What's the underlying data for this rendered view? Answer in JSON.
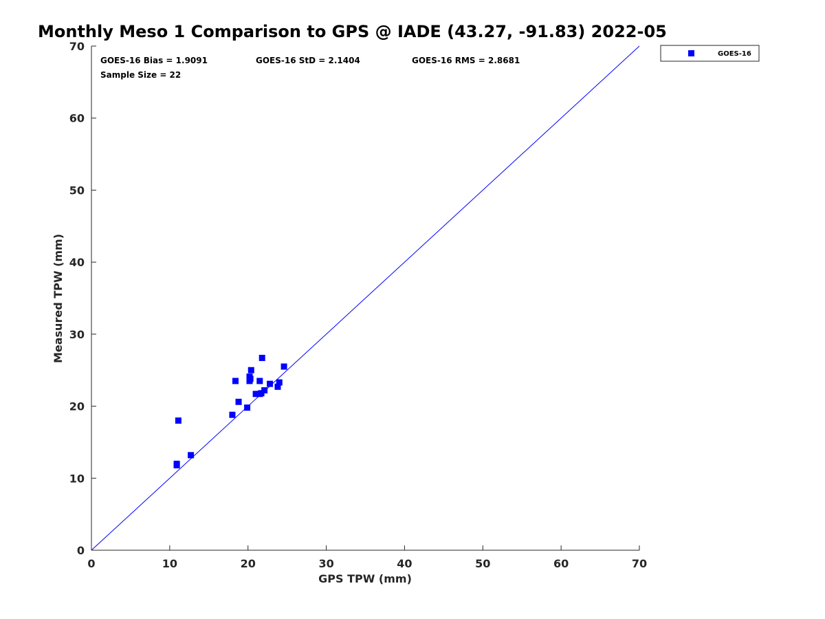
{
  "chart_data": {
    "type": "scatter",
    "title": "Monthly Meso 1 Comparison to GPS @ IADE (43.27, -91.83) 2022-05",
    "xlabel": "GPS TPW (mm)",
    "ylabel": "Measured TPW (mm)",
    "xlim": [
      0,
      70
    ],
    "ylim": [
      0,
      70
    ],
    "xticks": [
      "0",
      "10",
      "20",
      "30",
      "40",
      "50",
      "60",
      "70"
    ],
    "yticks": [
      "0",
      "10",
      "20",
      "30",
      "40",
      "50",
      "60",
      "70"
    ],
    "grid": false,
    "legend_position": "outside-top-right",
    "reference_line": {
      "from": [
        0,
        0
      ],
      "to": [
        70,
        70
      ],
      "color": "#0000ff"
    },
    "stats": {
      "bias": "GOES-16 Bias = 1.9091",
      "std": "GOES-16 StD = 2.1404",
      "rms": "GOES-16 RMS = 2.8681",
      "sample": "Sample Size = 22"
    },
    "series": [
      {
        "name": "GOES-16",
        "color": "#0000ff",
        "marker": "square",
        "points": [
          [
            10.9,
            11.8
          ],
          [
            10.9,
            12.0
          ],
          [
            11.1,
            18.0
          ],
          [
            12.7,
            13.2
          ],
          [
            18.0,
            18.8
          ],
          [
            18.4,
            23.5
          ],
          [
            18.8,
            20.6
          ],
          [
            19.9,
            19.8
          ],
          [
            20.2,
            23.5
          ],
          [
            20.2,
            24.1
          ],
          [
            20.4,
            25.0
          ],
          [
            21.0,
            21.7
          ],
          [
            21.5,
            21.7
          ],
          [
            21.5,
            23.5
          ],
          [
            21.7,
            21.8
          ],
          [
            21.8,
            26.7
          ],
          [
            22.1,
            22.2
          ],
          [
            22.8,
            23.1
          ],
          [
            23.8,
            22.7
          ],
          [
            24.0,
            23.3
          ],
          [
            24.6,
            25.5
          ],
          [
            20.3,
            23.8
          ]
        ]
      }
    ]
  }
}
